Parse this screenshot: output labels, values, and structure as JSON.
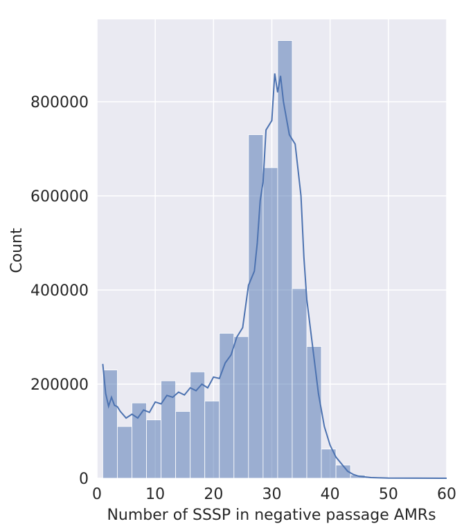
{
  "chart_data": {
    "type": "bar",
    "xlabel": "Number of SSSP in negative passage AMRs",
    "ylabel": "Count",
    "xlim": [
      0,
      60
    ],
    "ylim": [
      0,
      975000
    ],
    "x_ticks": [
      0,
      10,
      20,
      30,
      40,
      50,
      60
    ],
    "y_ticks": [
      0,
      200000,
      400000,
      600000,
      800000
    ],
    "grid": true,
    "bin_width": 2.5,
    "bins": [
      {
        "start": 1.0,
        "count": 230000
      },
      {
        "start": 3.5,
        "count": 110000
      },
      {
        "start": 6.0,
        "count": 160000
      },
      {
        "start": 8.5,
        "count": 124000
      },
      {
        "start": 11.0,
        "count": 207000
      },
      {
        "start": 13.5,
        "count": 142000
      },
      {
        "start": 16.0,
        "count": 226000
      },
      {
        "start": 18.5,
        "count": 164000
      },
      {
        "start": 21.0,
        "count": 308000
      },
      {
        "start": 23.5,
        "count": 301000
      },
      {
        "start": 26.0,
        "count": 730000
      },
      {
        "start": 28.5,
        "count": 660000
      },
      {
        "start": 31.0,
        "count": 930000
      },
      {
        "start": 33.5,
        "count": 403000
      },
      {
        "start": 36.0,
        "count": 280000
      },
      {
        "start": 38.5,
        "count": 62000
      },
      {
        "start": 41.0,
        "count": 28000
      },
      {
        "start": 43.5,
        "count": 7000
      },
      {
        "start": 46.0,
        "count": 2500
      },
      {
        "start": 48.5,
        "count": 1000
      },
      {
        "start": 51.0,
        "count": 400
      },
      {
        "start": 53.5,
        "count": 150
      },
      {
        "start": 56.0,
        "count": 60
      },
      {
        "start": 58.5,
        "count": 20
      }
    ],
    "kde": {
      "x": [
        1,
        1.5,
        2,
        2.5,
        3,
        3.5,
        4,
        5,
        6,
        7,
        8,
        9,
        10,
        11,
        12,
        13,
        14,
        15,
        16,
        17,
        18,
        19,
        20,
        21,
        22,
        23,
        24,
        25,
        26,
        27,
        27.5,
        28,
        28.5,
        29,
        30,
        30.5,
        31,
        31.5,
        32,
        33,
        34,
        35,
        35.5,
        36,
        37,
        38,
        39,
        40,
        41,
        42,
        43,
        44,
        45,
        47,
        50,
        55,
        60
      ],
      "y": [
        243000,
        180000,
        153000,
        172000,
        155000,
        152000,
        142000,
        128000,
        136000,
        128000,
        145000,
        140000,
        162000,
        158000,
        176000,
        172000,
        183000,
        177000,
        192000,
        186000,
        200000,
        192000,
        215000,
        212000,
        245000,
        262000,
        300000,
        320000,
        410000,
        440000,
        500000,
        590000,
        630000,
        740000,
        760000,
        860000,
        820000,
        855000,
        800000,
        730000,
        710000,
        600000,
        470000,
        380000,
        280000,
        180000,
        110000,
        70000,
        45000,
        30000,
        15000,
        8000,
        4000,
        1500,
        500,
        100,
        20
      ]
    },
    "colors": {
      "bar_fill": "#4c72b0",
      "bar_opacity": 0.5,
      "line": "#4c72b0",
      "plot_bg": "#eaeaf2",
      "grid": "#ffffff"
    }
  }
}
